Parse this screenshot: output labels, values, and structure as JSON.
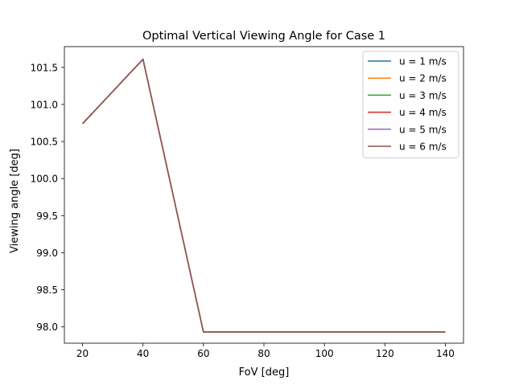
{
  "chart_data": {
    "type": "line",
    "title": "Optimal Vertical Viewing Angle for Case 1",
    "xlabel": "FoV [deg]",
    "ylabel": "Viewing angle [deg]",
    "xlim": [
      14,
      146
    ],
    "ylim": [
      97.78,
      101.78
    ],
    "xticks": [
      20,
      40,
      60,
      80,
      100,
      120,
      140
    ],
    "yticks": [
      98.0,
      98.5,
      99.0,
      99.5,
      100.0,
      100.5,
      101.0,
      101.5
    ],
    "ytick_labels": [
      "98.0",
      "98.5",
      "99.0",
      "99.5",
      "100.0",
      "100.5",
      "101.0",
      "101.5"
    ],
    "grid": false,
    "legend_position": "top-right",
    "x": [
      20,
      40,
      60,
      80,
      100,
      120,
      140
    ],
    "series": [
      {
        "name": "u = 1 m/s",
        "color": "#1f77b4",
        "values": [
          100.74,
          101.61,
          97.93,
          97.93,
          97.93,
          97.93,
          97.93
        ]
      },
      {
        "name": "u = 2 m/s",
        "color": "#ff7f0e",
        "values": [
          100.74,
          101.61,
          97.93,
          97.93,
          97.93,
          97.93,
          97.93
        ]
      },
      {
        "name": "u = 3 m/s",
        "color": "#2ca02c",
        "values": [
          100.74,
          101.61,
          97.93,
          97.93,
          97.93,
          97.93,
          97.93
        ]
      },
      {
        "name": "u = 4 m/s",
        "color": "#d62728",
        "values": [
          100.74,
          101.61,
          97.93,
          97.93,
          97.93,
          97.93,
          97.93
        ]
      },
      {
        "name": "u = 5 m/s",
        "color": "#9467bd",
        "values": [
          100.74,
          101.61,
          97.93,
          97.93,
          97.93,
          97.93,
          97.93
        ]
      },
      {
        "name": "u = 6 m/s",
        "color": "#8c564b",
        "values": [
          100.74,
          101.61,
          97.93,
          97.93,
          97.93,
          97.93,
          97.93
        ]
      }
    ]
  }
}
